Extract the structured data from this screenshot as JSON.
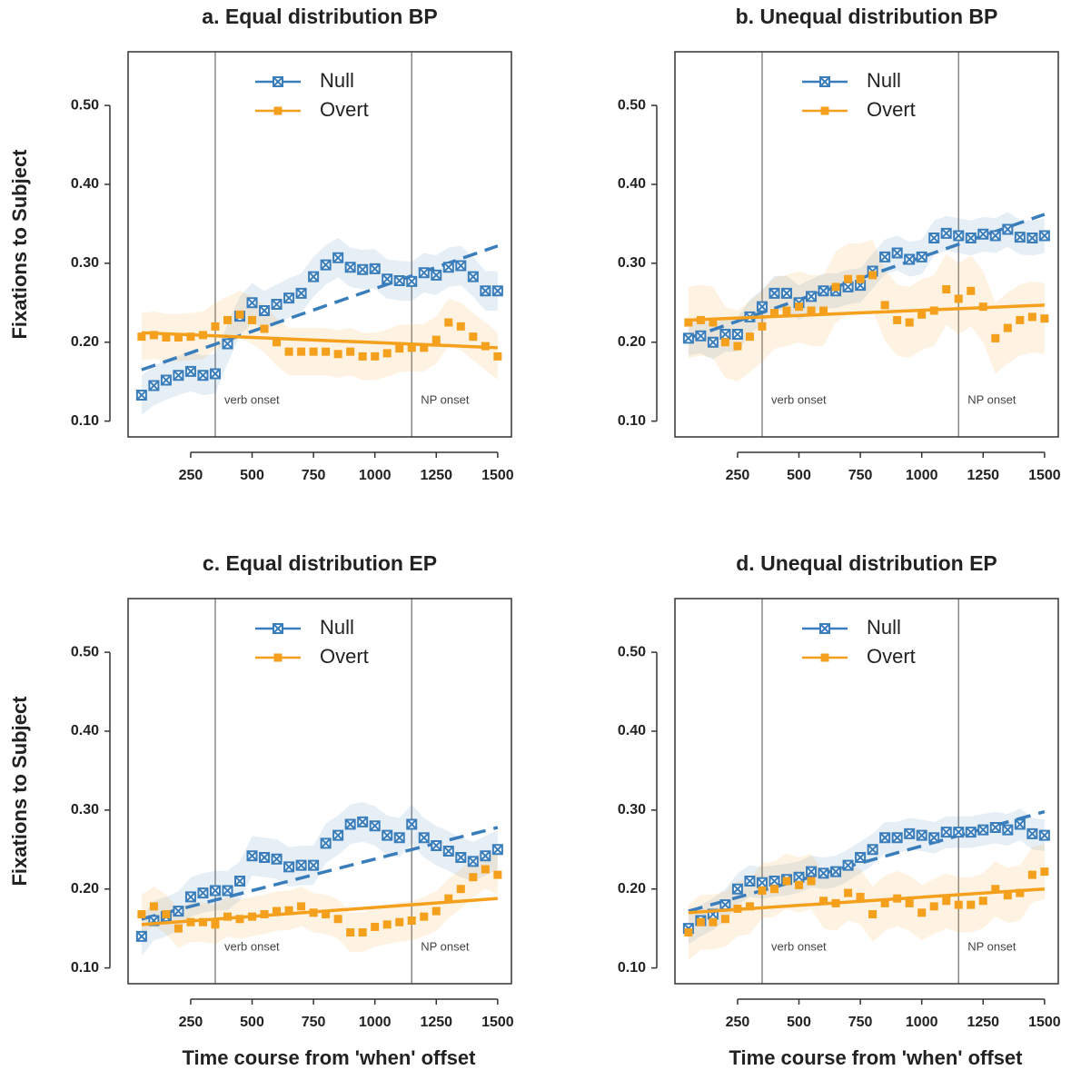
{
  "chart_data": [
    {
      "type": "line",
      "title": "a. Equal distribution BP",
      "ylabel": "Fixations to Subject",
      "x": [
        50,
        100,
        150,
        200,
        250,
        300,
        350,
        400,
        450,
        500,
        550,
        600,
        650,
        700,
        750,
        800,
        850,
        900,
        950,
        1000,
        1050,
        1100,
        1150,
        1200,
        1250,
        1300,
        1350,
        1400,
        1450,
        1500
      ],
      "trend_x": [
        50,
        1500
      ],
      "series": [
        {
          "name": "Null",
          "color": "#3a7dbb",
          "marker": "boxcross",
          "dashed": true,
          "ci": 0.025,
          "values": [
            0.133,
            0.145,
            0.152,
            0.158,
            0.163,
            0.158,
            0.16,
            0.198,
            0.233,
            0.25,
            0.24,
            0.248,
            0.256,
            0.262,
            0.283,
            0.298,
            0.307,
            0.295,
            0.292,
            0.293,
            0.28,
            0.278,
            0.277,
            0.288,
            0.285,
            0.295,
            0.297,
            0.283,
            0.265,
            0.265
          ],
          "trend": [
            0.165,
            0.322
          ]
        },
        {
          "name": "Overt",
          "color": "#f5a01c",
          "marker": "square",
          "dashed": false,
          "ci": 0.03,
          "values": [
            0.207,
            0.209,
            0.206,
            0.206,
            0.207,
            0.209,
            0.22,
            0.228,
            0.235,
            0.228,
            0.217,
            0.2,
            0.188,
            0.188,
            0.188,
            0.188,
            0.185,
            0.188,
            0.182,
            0.182,
            0.186,
            0.192,
            0.193,
            0.193,
            0.203,
            0.225,
            0.22,
            0.207,
            0.195,
            0.182
          ],
          "trend": [
            0.212,
            0.193
          ]
        }
      ],
      "xlim": [
        -5,
        1556
      ],
      "ylim": [
        0.08,
        0.568
      ],
      "xticks": [
        250,
        500,
        750,
        1000,
        1250,
        1500
      ],
      "yticks": [
        {
          "value": 0.1,
          "label": "0.10"
        },
        {
          "value": 0.2,
          "label": "0.20"
        },
        {
          "value": 0.3,
          "label": "0.30"
        },
        {
          "value": 0.4,
          "label": "0.40"
        },
        {
          "value": 0.5,
          "label": "0.50"
        }
      ],
      "vlines": [
        {
          "value": 350,
          "label": "verb onset"
        },
        {
          "value": 1150,
          "label": "NP onset"
        }
      ]
    },
    {
      "type": "line",
      "title": "b. Unequal distribution BP",
      "x": [
        50,
        100,
        150,
        200,
        250,
        300,
        350,
        400,
        450,
        500,
        550,
        600,
        650,
        700,
        750,
        800,
        850,
        900,
        950,
        1000,
        1050,
        1100,
        1150,
        1200,
        1250,
        1300,
        1350,
        1400,
        1450,
        1500
      ],
      "trend_x": [
        50,
        1500
      ],
      "series": [
        {
          "name": "Null",
          "color": "#3a7dbb",
          "marker": "boxcross",
          "dashed": true,
          "ci": 0.022,
          "values": [
            0.205,
            0.208,
            0.2,
            0.21,
            0.21,
            0.232,
            0.245,
            0.262,
            0.262,
            0.25,
            0.258,
            0.265,
            0.265,
            0.27,
            0.272,
            0.29,
            0.308,
            0.313,
            0.305,
            0.308,
            0.332,
            0.338,
            0.335,
            0.332,
            0.337,
            0.335,
            0.343,
            0.333,
            0.332,
            0.335
          ],
          "trend": [
            0.205,
            0.362
          ]
        },
        {
          "name": "Overt",
          "color": "#f5a01c",
          "marker": "square",
          "dashed": false,
          "ci": 0.045,
          "values": [
            0.225,
            0.228,
            0.225,
            0.2,
            0.195,
            0.207,
            0.22,
            0.237,
            0.24,
            0.245,
            0.24,
            0.24,
            0.27,
            0.28,
            0.28,
            0.285,
            0.247,
            0.228,
            0.225,
            0.235,
            0.24,
            0.267,
            0.255,
            0.265,
            0.245,
            0.205,
            0.218,
            0.228,
            0.232,
            0.23
          ],
          "trend": [
            0.228,
            0.247
          ]
        }
      ],
      "xlim": [
        -5,
        1556
      ],
      "ylim": [
        0.08,
        0.568
      ],
      "xticks": [
        250,
        500,
        750,
        1000,
        1250,
        1500
      ],
      "yticks": [
        {
          "value": 0.1,
          "label": "0.10"
        },
        {
          "value": 0.2,
          "label": "0.20"
        },
        {
          "value": 0.3,
          "label": "0.30"
        },
        {
          "value": 0.4,
          "label": "0.40"
        },
        {
          "value": 0.5,
          "label": "0.50"
        }
      ],
      "vlines": [
        {
          "value": 350,
          "label": "verb onset"
        },
        {
          "value": 1150,
          "label": "NP onset"
        }
      ]
    },
    {
      "type": "line",
      "title": "c. Equal distribution EP",
      "ylabel": "Fixations to Subject",
      "xlabel": "Time course from 'when' offset",
      "x": [
        50,
        100,
        150,
        200,
        250,
        300,
        350,
        400,
        450,
        500,
        550,
        600,
        650,
        700,
        750,
        800,
        850,
        900,
        950,
        1000,
        1050,
        1100,
        1150,
        1200,
        1250,
        1300,
        1350,
        1400,
        1450,
        1500
      ],
      "trend_x": [
        50,
        1500
      ],
      "series": [
        {
          "name": "Null",
          "color": "#3a7dbb",
          "marker": "boxcross",
          "dashed": true,
          "ci": 0.025,
          "values": [
            0.14,
            0.16,
            0.165,
            0.172,
            0.19,
            0.195,
            0.198,
            0.198,
            0.21,
            0.242,
            0.24,
            0.238,
            0.228,
            0.23,
            0.23,
            0.258,
            0.268,
            0.282,
            0.285,
            0.28,
            0.268,
            0.265,
            0.282,
            0.265,
            0.255,
            0.248,
            0.24,
            0.235,
            0.242,
            0.25
          ],
          "trend": [
            0.162,
            0.278
          ]
        },
        {
          "name": "Overt",
          "color": "#f5a01c",
          "marker": "square",
          "dashed": false,
          "ci": 0.025,
          "values": [
            0.168,
            0.178,
            0.168,
            0.15,
            0.158,
            0.158,
            0.155,
            0.165,
            0.162,
            0.165,
            0.168,
            0.172,
            0.173,
            0.178,
            0.17,
            0.168,
            0.162,
            0.145,
            0.145,
            0.152,
            0.155,
            0.158,
            0.16,
            0.165,
            0.172,
            0.188,
            0.2,
            0.215,
            0.225,
            0.218
          ],
          "trend": [
            0.155,
            0.188
          ]
        }
      ],
      "xlim": [
        -5,
        1556
      ],
      "ylim": [
        0.08,
        0.568
      ],
      "xticks": [
        250,
        500,
        750,
        1000,
        1250,
        1500
      ],
      "yticks": [
        {
          "value": 0.1,
          "label": "0.10"
        },
        {
          "value": 0.2,
          "label": "0.20"
        },
        {
          "value": 0.3,
          "label": "0.30"
        },
        {
          "value": 0.4,
          "label": "0.40"
        },
        {
          "value": 0.5,
          "label": "0.50"
        }
      ],
      "vlines": [
        {
          "value": 350,
          "label": "verb onset"
        },
        {
          "value": 1150,
          "label": "NP onset"
        }
      ]
    },
    {
      "type": "line",
      "title": "d. Unequal distribution EP",
      "xlabel": "Time course from 'when' offset",
      "x": [
        50,
        100,
        150,
        200,
        250,
        300,
        350,
        400,
        450,
        500,
        550,
        600,
        650,
        700,
        750,
        800,
        850,
        900,
        950,
        1000,
        1050,
        1100,
        1150,
        1200,
        1250,
        1300,
        1350,
        1400,
        1450,
        1500
      ],
      "trend_x": [
        50,
        1500
      ],
      "series": [
        {
          "name": "Null",
          "color": "#3a7dbb",
          "marker": "boxcross",
          "dashed": true,
          "ci": 0.02,
          "values": [
            0.15,
            0.16,
            0.168,
            0.18,
            0.2,
            0.21,
            0.208,
            0.21,
            0.212,
            0.215,
            0.222,
            0.22,
            0.222,
            0.23,
            0.24,
            0.25,
            0.265,
            0.265,
            0.27,
            0.268,
            0.265,
            0.272,
            0.272,
            0.272,
            0.275,
            0.278,
            0.275,
            0.282,
            0.27,
            0.268
          ],
          "trend": [
            0.172,
            0.298
          ]
        },
        {
          "name": "Overt",
          "color": "#f5a01c",
          "marker": "square",
          "dashed": false,
          "ci": 0.035,
          "values": [
            0.145,
            0.158,
            0.158,
            0.162,
            0.175,
            0.178,
            0.198,
            0.2,
            0.21,
            0.205,
            0.21,
            0.185,
            0.182,
            0.195,
            0.19,
            0.168,
            0.182,
            0.188,
            0.182,
            0.17,
            0.178,
            0.185,
            0.18,
            0.18,
            0.185,
            0.2,
            0.192,
            0.195,
            0.218,
            0.222
          ],
          "trend": [
            0.17,
            0.2
          ]
        }
      ],
      "xlim": [
        -5,
        1556
      ],
      "ylim": [
        0.08,
        0.568
      ],
      "xticks": [
        250,
        500,
        750,
        1000,
        1250,
        1500
      ],
      "yticks": [
        {
          "value": 0.1,
          "label": "0.10"
        },
        {
          "value": 0.2,
          "label": "0.20"
        },
        {
          "value": 0.3,
          "label": "0.30"
        },
        {
          "value": 0.4,
          "label": "0.40"
        },
        {
          "value": 0.5,
          "label": "0.50"
        }
      ],
      "vlines": [
        {
          "value": 350,
          "label": "verb onset"
        },
        {
          "value": 1150,
          "label": "NP onset"
        }
      ]
    }
  ]
}
